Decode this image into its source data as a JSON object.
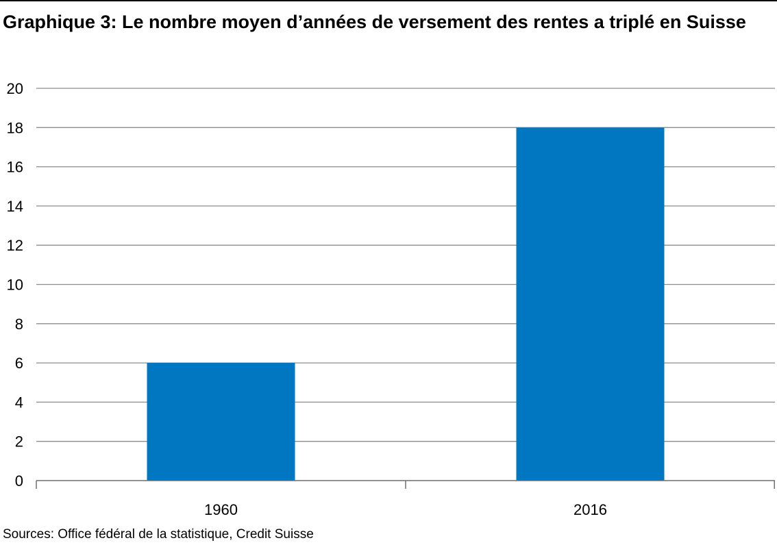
{
  "chart_data": {
    "type": "bar",
    "title": "Graphique 3: Le nombre moyen d’années de versement des rentes a triplé en Suisse",
    "source": "Sources: Office fédéral de la statistique, Credit Suisse",
    "categories": [
      "1960",
      "2016"
    ],
    "values": [
      6,
      18
    ],
    "xlabel": "",
    "ylabel": "",
    "ylim": [
      0,
      20
    ],
    "yticks": [
      0,
      2,
      4,
      6,
      8,
      10,
      12,
      14,
      16,
      18,
      20
    ],
    "grid": true,
    "legend": "none",
    "colors": {
      "bar": "#0077c0",
      "grid": "#8c8c8c",
      "axis": "#6e6e6e",
      "text": "#000000"
    }
  }
}
